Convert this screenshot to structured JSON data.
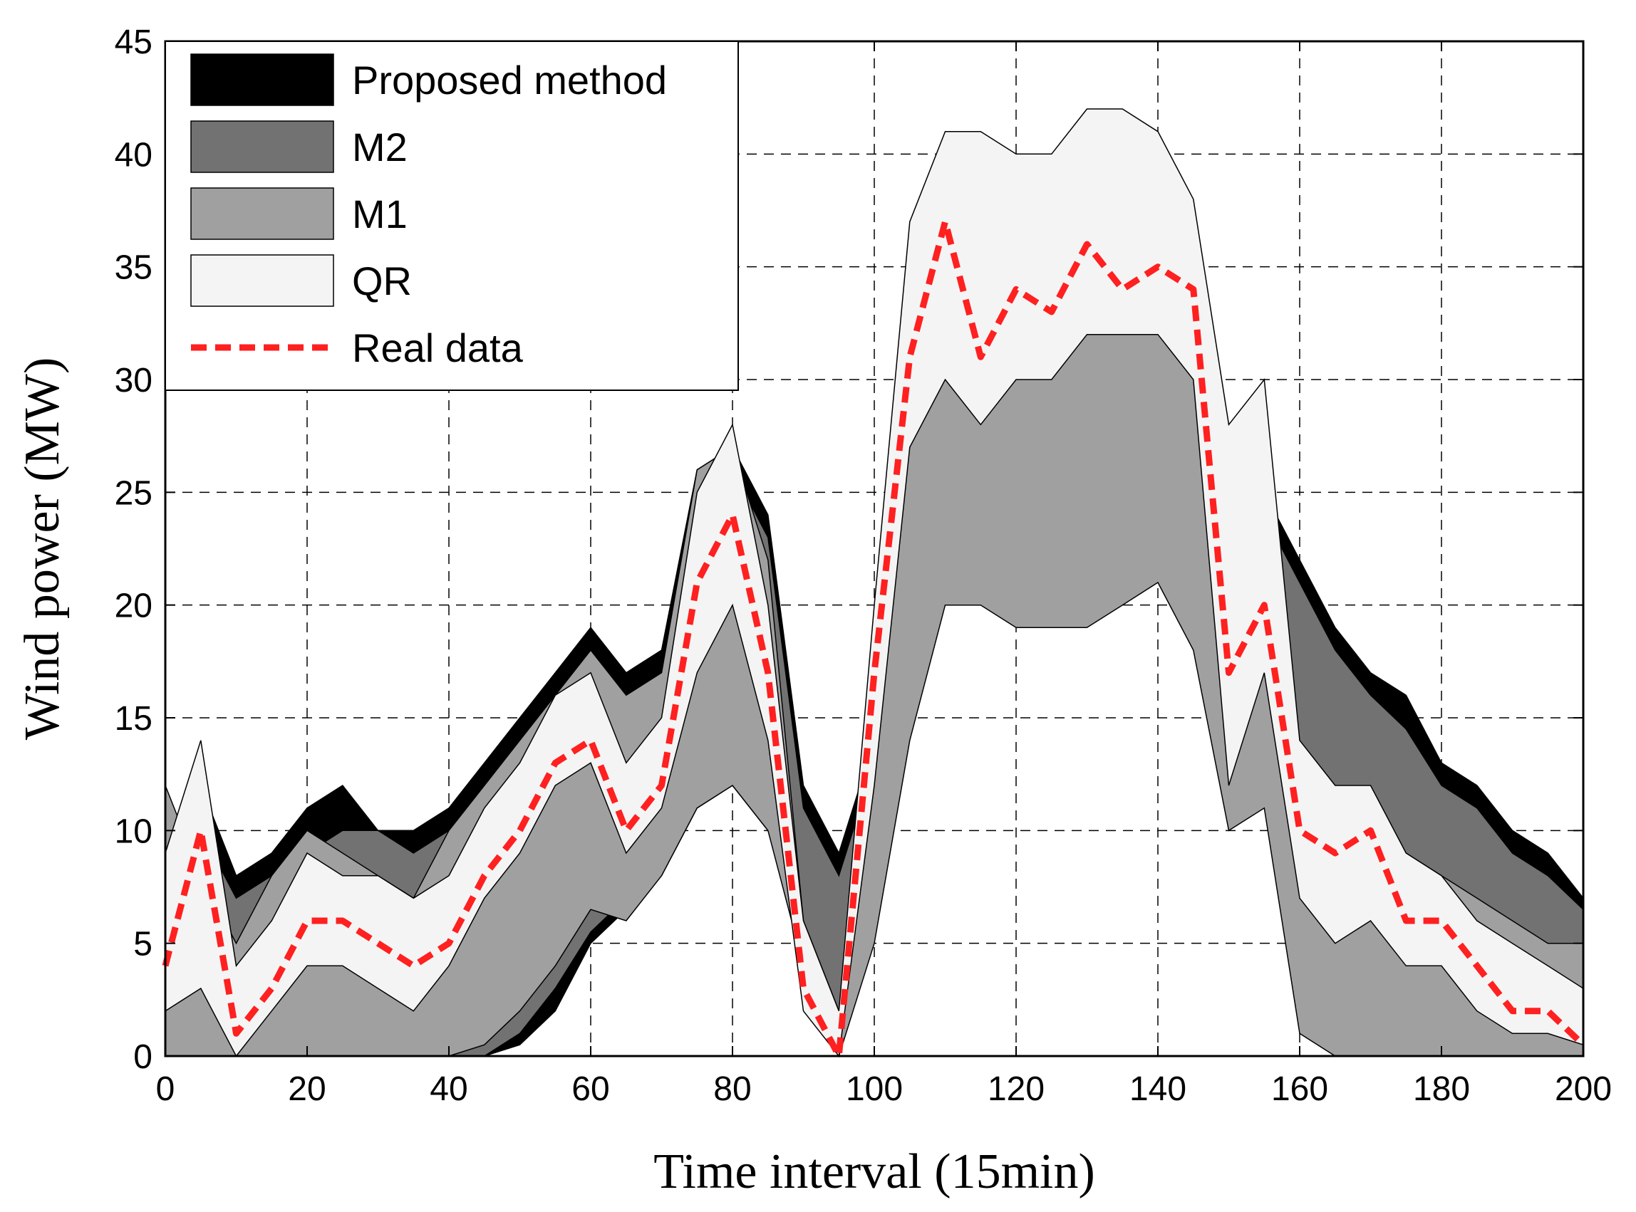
{
  "chart_data": {
    "type": "area",
    "xlabel": "Time interval (15min)",
    "ylabel": "Wind power (MW)",
    "xlim": [
      0,
      200
    ],
    "ylim": [
      0,
      45
    ],
    "xticks": [
      0,
      20,
      40,
      60,
      80,
      100,
      120,
      140,
      160,
      180,
      200
    ],
    "yticks": [
      0,
      5,
      10,
      15,
      20,
      25,
      30,
      35,
      40,
      45
    ],
    "grid": true,
    "legend_position": "top-left",
    "x": [
      0,
      5,
      10,
      15,
      20,
      25,
      30,
      35,
      40,
      45,
      50,
      55,
      60,
      65,
      70,
      75,
      80,
      85,
      90,
      95,
      100,
      105,
      110,
      115,
      120,
      125,
      130,
      135,
      140,
      145,
      150,
      155,
      160,
      165,
      170,
      175,
      180,
      185,
      190,
      195,
      200
    ],
    "series": [
      {
        "name": "Proposed method",
        "color": "#000000",
        "lower": [
          0,
          0,
          0,
          0,
          0,
          0,
          0,
          0,
          0,
          0,
          0.5,
          2,
          5,
          6.5,
          8,
          11,
          12,
          10,
          5,
          0.5,
          6,
          15,
          20,
          20,
          20,
          21,
          22,
          22,
          22,
          20,
          12,
          13,
          3,
          2,
          1.5,
          0.5,
          0,
          0,
          0,
          0,
          0
        ],
        "upper": [
          9,
          12,
          8,
          9,
          11,
          12,
          10,
          10,
          11,
          13,
          15,
          17,
          19,
          17,
          18,
          26,
          27,
          24,
          12,
          9,
          14,
          30,
          37,
          37,
          38,
          38,
          39,
          39,
          38,
          36,
          28,
          25,
          22,
          19,
          17,
          16,
          13,
          12,
          10,
          9,
          7
        ]
      },
      {
        "name": "M2",
        "color": "#727272",
        "lower": [
          0,
          0,
          0,
          0,
          0,
          0,
          0,
          0,
          0,
          0,
          1,
          3,
          5.5,
          7,
          9,
          12,
          13,
          11,
          6,
          1,
          7,
          16,
          21,
          22,
          23,
          23,
          24,
          24,
          24,
          22,
          13,
          14,
          4,
          3,
          2,
          1,
          0,
          0,
          0,
          0,
          0
        ],
        "upper": [
          8,
          10,
          7,
          8,
          9,
          10,
          10,
          9,
          10,
          12,
          14,
          16,
          18,
          16,
          17,
          25,
          26,
          23,
          11,
          8,
          13,
          29,
          36,
          36,
          37,
          37,
          38,
          38,
          37,
          35,
          27,
          24,
          21,
          18,
          16,
          14.5,
          12,
          11,
          9,
          8,
          6.5
        ]
      },
      {
        "name": "M1",
        "color": "#a0a0a0",
        "lower": [
          0,
          0,
          0,
          0,
          0,
          0,
          0,
          0,
          0,
          0.5,
          2,
          4,
          6.5,
          6,
          8,
          11,
          12,
          10,
          4,
          0,
          5,
          14,
          20,
          20,
          19,
          19,
          19,
          20,
          21,
          18,
          10,
          11,
          1,
          0,
          0,
          0,
          0,
          0,
          0,
          0,
          0
        ],
        "upper": [
          12,
          8,
          5,
          8,
          10,
          9,
          8,
          7,
          10,
          12,
          14,
          16,
          18,
          16,
          17,
          26,
          27,
          22,
          6,
          2,
          16,
          32,
          38,
          36,
          38,
          38,
          41,
          40,
          40,
          36,
          26,
          24,
          12,
          11,
          11,
          9,
          8,
          7,
          6,
          5,
          5
        ]
      },
      {
        "name": "QR",
        "color": "#f4f4f4",
        "lower": [
          2,
          3,
          0,
          2,
          4,
          4,
          3,
          2,
          4,
          7,
          9,
          12,
          13,
          9,
          11,
          17,
          20,
          14,
          2,
          0,
          12,
          27,
          30,
          28,
          30,
          30,
          32,
          32,
          32,
          30,
          12,
          17,
          7,
          5,
          6,
          4,
          4,
          2,
          1,
          1,
          0.5
        ],
        "upper": [
          9,
          14,
          4,
          6,
          9,
          8,
          8,
          7,
          8,
          11,
          13,
          16,
          17,
          13,
          15,
          25,
          28,
          20,
          6,
          2,
          20,
          37,
          41,
          41,
          40,
          40,
          42,
          42,
          41,
          38,
          28,
          30,
          14,
          12,
          12,
          9,
          8,
          6,
          5,
          4,
          3
        ]
      },
      {
        "name": "Real data",
        "color": "#ff2020",
        "style": "dashed",
        "values": [
          4,
          10,
          1,
          3,
          6,
          6,
          5,
          4,
          5,
          8,
          10,
          13,
          14,
          10,
          12,
          21,
          24,
          17,
          3,
          0,
          17,
          31,
          37,
          31,
          34,
          33,
          36,
          34,
          35,
          34,
          17,
          20,
          10,
          9,
          10,
          6,
          6,
          4,
          2,
          2,
          0.5
        ]
      }
    ]
  }
}
